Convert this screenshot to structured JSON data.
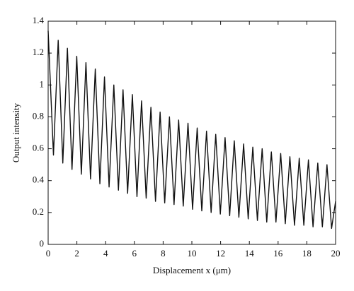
{
  "chart_data": {
    "type": "line",
    "xlabel": "Displacement x (μm)",
    "ylabel": "Output intensity",
    "x": [
      0,
      0.37,
      0.7,
      1.02,
      1.34,
      1.66,
      1.99,
      2.31,
      2.63,
      2.95,
      3.28,
      3.6,
      3.92,
      4.24,
      4.57,
      4.89,
      5.21,
      5.53,
      5.86,
      6.18,
      6.5,
      6.82,
      7.15,
      7.47,
      7.79,
      8.11,
      8.44,
      8.76,
      9.08,
      9.4,
      9.73,
      10.05,
      10.37,
      10.69,
      11.02,
      11.34,
      11.66,
      11.98,
      12.31,
      12.63,
      12.95,
      13.27,
      13.6,
      13.92,
      14.24,
      14.56,
      14.89,
      15.21,
      15.53,
      15.85,
      16.18,
      16.5,
      16.82,
      17.14,
      17.47,
      17.79,
      18.11,
      18.43,
      18.76,
      19.08,
      19.4,
      19.72,
      20
    ],
    "series": [
      {
        "name": "Output intensity",
        "color": "#111111",
        "values": [
          1.34,
          0.56,
          1.28,
          0.51,
          1.23,
          0.47,
          1.18,
          0.44,
          1.14,
          0.41,
          1.1,
          0.38,
          1.05,
          0.36,
          1.0,
          0.34,
          0.97,
          0.32,
          0.94,
          0.3,
          0.9,
          0.29,
          0.86,
          0.27,
          0.83,
          0.26,
          0.8,
          0.25,
          0.78,
          0.24,
          0.76,
          0.22,
          0.73,
          0.21,
          0.71,
          0.2,
          0.69,
          0.19,
          0.67,
          0.18,
          0.65,
          0.17,
          0.63,
          0.16,
          0.61,
          0.15,
          0.6,
          0.14,
          0.58,
          0.14,
          0.57,
          0.13,
          0.55,
          0.12,
          0.54,
          0.12,
          0.53,
          0.11,
          0.51,
          0.11,
          0.5,
          0.1,
          0.27
        ]
      }
    ],
    "xlim": [
      0,
      20
    ],
    "xticks": [
      0,
      2,
      4,
      6,
      8,
      10,
      12,
      14,
      16,
      18,
      20
    ],
    "ylim": [
      0,
      1.4
    ],
    "yticks": [
      0,
      0.2,
      0.4,
      0.6,
      0.8,
      1,
      1.2,
      1.4
    ],
    "grid": false
  }
}
